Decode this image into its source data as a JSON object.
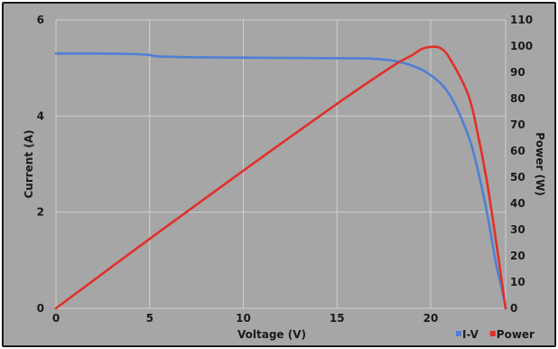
{
  "chart_data": {
    "type": "line",
    "xlabel": "Voltage (V)",
    "ylabel_left": "Current (A)",
    "ylabel_right": "Power (W)",
    "xlim": [
      0,
      24
    ],
    "ylim_left": [
      0,
      6
    ],
    "ylim_right": [
      0,
      110
    ],
    "x_ticks": [
      0,
      5,
      10,
      15,
      20
    ],
    "y_left_ticks": [
      0,
      2,
      4,
      6
    ],
    "y_right_ticks": [
      0,
      10,
      20,
      30,
      40,
      50,
      60,
      70,
      80,
      90,
      100,
      110
    ],
    "grid": true,
    "legend_position": "bottom-right",
    "series": [
      {
        "name": "I-V",
        "axis": "left",
        "color": "#4f7fd4",
        "x": [
          0,
          2,
          4,
          5,
          5.5,
          8,
          12,
          16,
          17,
          18,
          19,
          20,
          21,
          22,
          22.5,
          23,
          23.5,
          23.8,
          24
        ],
        "y": [
          5.3,
          5.3,
          5.29,
          5.27,
          5.24,
          5.22,
          5.21,
          5.2,
          5.19,
          5.15,
          5.05,
          4.85,
          4.45,
          3.6,
          2.9,
          2.0,
          0.9,
          0.4,
          0
        ]
      },
      {
        "name": "Power",
        "axis": "right",
        "color": "#e1302a",
        "x": [
          0,
          5,
          10,
          15,
          18,
          19,
          19.5,
          20,
          20.5,
          21,
          22,
          22.5,
          23,
          23.5,
          24
        ],
        "y": [
          0,
          26.5,
          52.5,
          78,
          92.5,
          96.5,
          98.8,
          99.7,
          99.3,
          95.5,
          81.5,
          67,
          48.5,
          25,
          0
        ]
      }
    ]
  }
}
